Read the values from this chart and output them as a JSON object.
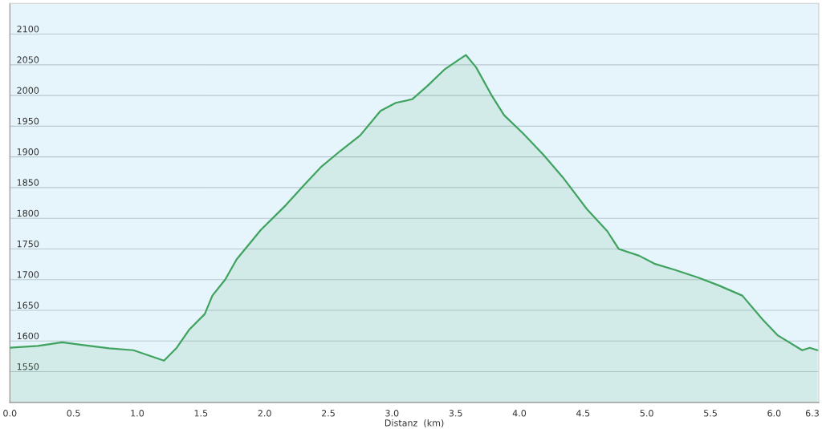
{
  "chart_data": {
    "type": "area",
    "xlabel": "Distanz  (km)",
    "x": [
      0,
      0.22,
      0.41,
      0.59,
      0.78,
      0.97,
      1.21,
      1.31,
      1.41,
      1.53,
      1.59,
      1.69,
      1.78,
      1.97,
      2.16,
      2.31,
      2.44,
      2.59,
      2.75,
      2.91,
      3.03,
      3.16,
      3.28,
      3.41,
      3.53,
      3.58,
      3.66,
      3.78,
      3.88,
      4.03,
      4.19,
      4.34,
      4.53,
      4.69,
      4.78,
      4.94,
      5.06,
      5.22,
      5.41,
      5.56,
      5.75,
      5.91,
      6.03,
      6.22,
      6.28,
      6.34
    ],
    "series": [
      {
        "color": "#3fa35f",
        "values": [
          1589,
          1592,
          1598,
          1593,
          1588,
          1585,
          1568,
          1589,
          1619,
          1644,
          1674,
          1700,
          1733,
          1781,
          1820,
          1854,
          1883,
          1909,
          1935,
          1975,
          1988,
          1994,
          2016,
          2042,
          2059,
          2066,
          2046,
          2001,
          1968,
          1938,
          1903,
          1867,
          1815,
          1779,
          1750,
          1739,
          1726,
          1716,
          1703,
          1691,
          1674,
          1635,
          1609,
          1585,
          1589,
          1585
        ]
      }
    ],
    "xlim": [
      0,
      6.35
    ],
    "ylim": [
      1500,
      2150
    ],
    "xticks": [
      {
        "value": 0,
        "label": "0.0"
      },
      0.5,
      {
        "value": 1,
        "label": "1.0"
      },
      1.5,
      {
        "value": 2,
        "label": "2.0"
      },
      2.5,
      {
        "value": 3,
        "label": "3.0"
      },
      3.5,
      {
        "value": 4,
        "label": "4.0"
      },
      4.5,
      {
        "value": 5,
        "label": "5.0"
      },
      5.5,
      {
        "value": 6,
        "label": "6.0"
      },
      6.3
    ],
    "yticks": [
      1550,
      1600,
      1650,
      1700,
      1750,
      1800,
      1850,
      1900,
      1950,
      2000,
      2050,
      2100
    ],
    "grid": "y"
  }
}
